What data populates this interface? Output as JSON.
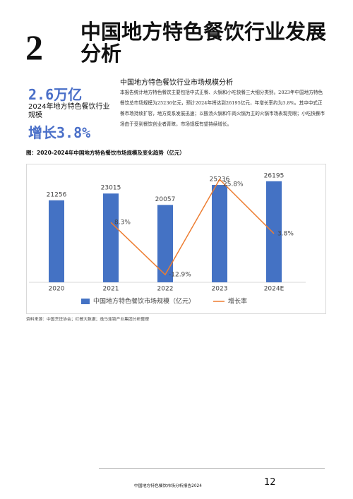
{
  "section_number": "2",
  "title": "中国地方特色餐饮行业发展分析",
  "highlight": {
    "value": "2.6万亿",
    "label": "2024年地方特色餐饮行业规模",
    "growth": "增长3.8%"
  },
  "section": {
    "heading": "中国地方特色餐饮行业市场规模分析",
    "body": "本报告统计地方特色餐饮主要包括中式正餐、火锅和小吃快餐三大细分类别。2023年中国地方特色餐饮总市场规模为25236亿元，预计2024年将达到26195亿元，年增长率约为3.8%。其中中式正餐市场持续扩容，地方菜系发展迅速；以酸汤火锅和牛肉火锅为主的火锅市场表现亮眼；小吃快餐市场由于受到餐饮创业者青睐，市场规模有望持续增长。"
  },
  "figure": {
    "caption": "图：2020-2024年中国地方特色餐饮市场规模及变化趋势（亿元）",
    "source": "资料来源：中国烹饪协会；红餐大数据；逸马连锁产业集团分析整理"
  },
  "chart_data": {
    "type": "combo",
    "categories": [
      "2020",
      "2021",
      "2022",
      "2023",
      "2024E"
    ],
    "series": [
      {
        "name": "中国地方特色餐饮市场规模（亿元）",
        "type": "bar",
        "color": "#4472c4",
        "values": [
          21256,
          23015,
          20057,
          25236,
          26195
        ]
      },
      {
        "name": "增长率",
        "type": "line",
        "axis": "y2",
        "color": "#ed7d31",
        "values": [
          null,
          8.3,
          -12.9,
          25.8,
          3.8
        ],
        "value_labels": [
          null,
          "8.3%",
          "-12.9%",
          "25.8%",
          "3.8%"
        ]
      }
    ],
    "ylim": [
      0,
      30000
    ],
    "y2lim": [
      -16,
      31
    ]
  },
  "footer": {
    "text": "中国地方特色餐饮市场分析报告2024",
    "page": "12"
  }
}
